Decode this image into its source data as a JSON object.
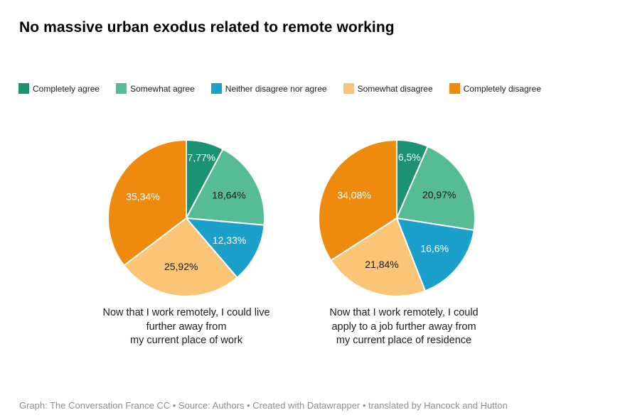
{
  "title": "No massive urban exodus related to remote working",
  "legend": {
    "position": "top",
    "items": [
      {
        "label": "Completely agree",
        "color": "#1B9271"
      },
      {
        "label": "Somewhat agree",
        "color": "#56BC96"
      },
      {
        "label": "Neither disagree nor agree",
        "color": "#1AA0CB"
      },
      {
        "label": "Somewhat disagree",
        "color": "#FAC576"
      },
      {
        "label": "Completely disagree",
        "color": "#EE8B0F"
      }
    ]
  },
  "chart_data": [
    {
      "type": "pie",
      "title": "Now that I work remotely, I could live further away from my current place of work",
      "caption_lines": [
        "Now that I work remotely, I could live",
        "further away from",
        "my current place of work"
      ],
      "categories": [
        "Completely agree",
        "Somewhat agree",
        "Neither disagree nor agree",
        "Somewhat disagree",
        "Completely disagree"
      ],
      "values": [
        7.77,
        18.64,
        12.33,
        25.92,
        35.34
      ],
      "value_labels": [
        "7,77%",
        "18,64%",
        "12,33%",
        "25,92%",
        "35,34%"
      ],
      "colors": [
        "#1B9271",
        "#56BC96",
        "#1AA0CB",
        "#FAC576",
        "#EE8B0F"
      ],
      "label_text_colors": [
        "#ffffff",
        "#1a1a1a",
        "#ffffff",
        "#1a1a1a",
        "#ffffff"
      ],
      "start_angle": "12-oclock",
      "direction": "clockwise",
      "legend_position": "top"
    },
    {
      "type": "pie",
      "title": "Now that I work remotely, I could apply to a job further away from my current place of residence",
      "caption_lines": [
        "Now that I work remotely, I could",
        "apply to a job further away from",
        "my current place of residence"
      ],
      "categories": [
        "Completely agree",
        "Somewhat agree",
        "Neither disagree nor agree",
        "Somewhat disagree",
        "Completely disagree"
      ],
      "values": [
        6.5,
        20.97,
        16.6,
        21.84,
        34.08
      ],
      "value_labels": [
        "6,5%",
        "20,97%",
        "16,6%",
        "21,84%",
        "34,08%"
      ],
      "colors": [
        "#1B9271",
        "#56BC96",
        "#1AA0CB",
        "#FAC576",
        "#EE8B0F"
      ],
      "label_text_colors": [
        "#ffffff",
        "#1a1a1a",
        "#ffffff",
        "#1a1a1a",
        "#ffffff"
      ],
      "start_angle": "12-oclock",
      "direction": "clockwise",
      "legend_position": "top"
    }
  ],
  "footer": {
    "text": "Graph: The Conversation France CC • Source: Authors • Created with Datawrapper • translated by Hancock and Hutton"
  }
}
